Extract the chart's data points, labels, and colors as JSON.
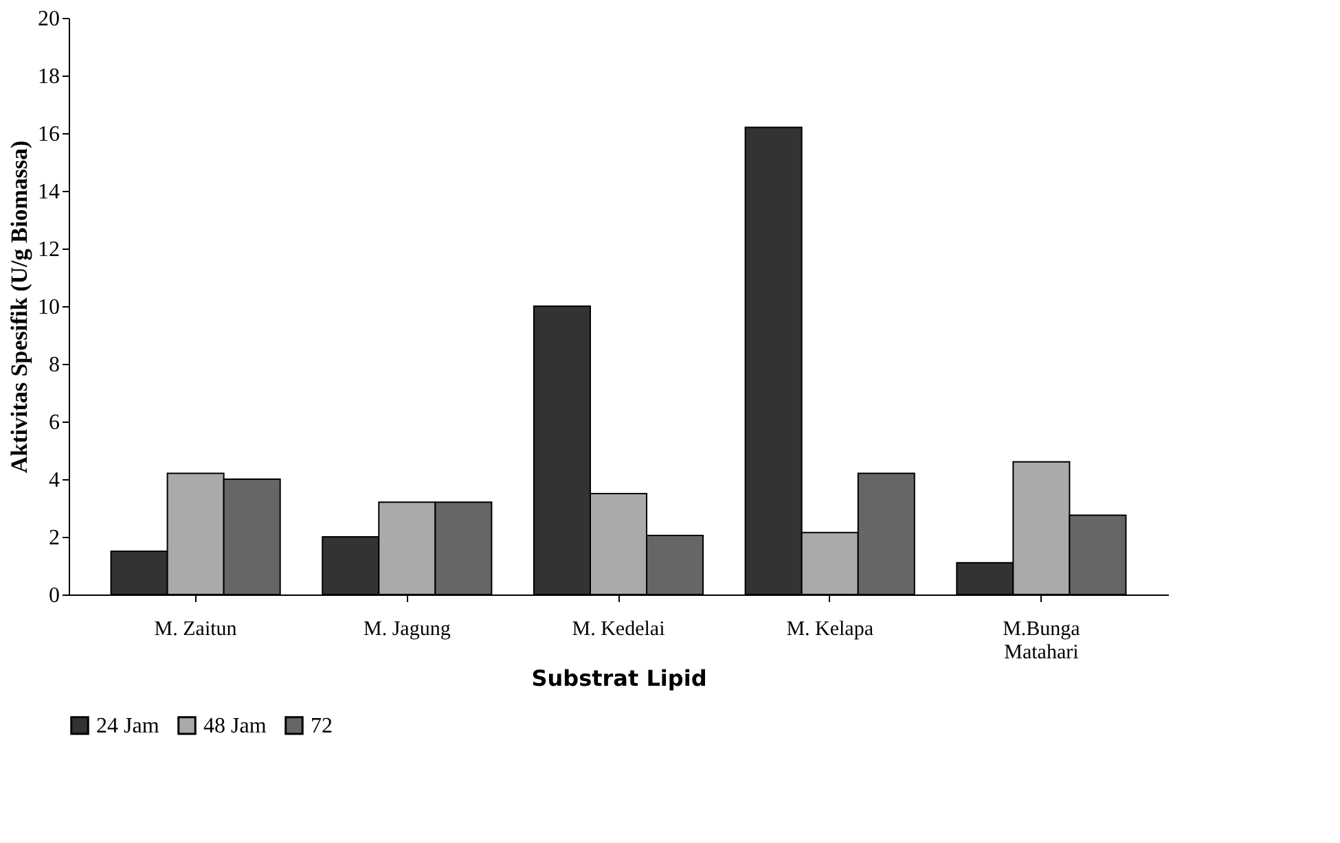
{
  "chart_data": {
    "type": "bar",
    "xlabel": "Substrat Lipid",
    "ylabel": "Aktivitas Spesifik (U/g Biomassa)",
    "categories": [
      "M. Zaitun",
      "M. Jagung",
      "M. Kedelai",
      "M. Kelapa",
      "M.Bunga Matahari"
    ],
    "series": [
      {
        "name": "24 Jam",
        "color": "#333333",
        "values": [
          1.5,
          2.0,
          10.0,
          16.2,
          1.1
        ]
      },
      {
        "name": "48 Jam",
        "color": "#aaaaaa",
        "values": [
          4.2,
          3.2,
          3.5,
          2.15,
          4.6
        ]
      },
      {
        "name": "72",
        "color": "#666666",
        "values": [
          4.0,
          3.2,
          2.05,
          4.2,
          2.75
        ]
      }
    ],
    "ylim": [
      0,
      20
    ],
    "yticks": [
      0,
      2,
      4,
      6,
      8,
      10,
      12,
      14,
      16,
      18,
      20
    ],
    "grid": false,
    "legend": "bottom"
  }
}
